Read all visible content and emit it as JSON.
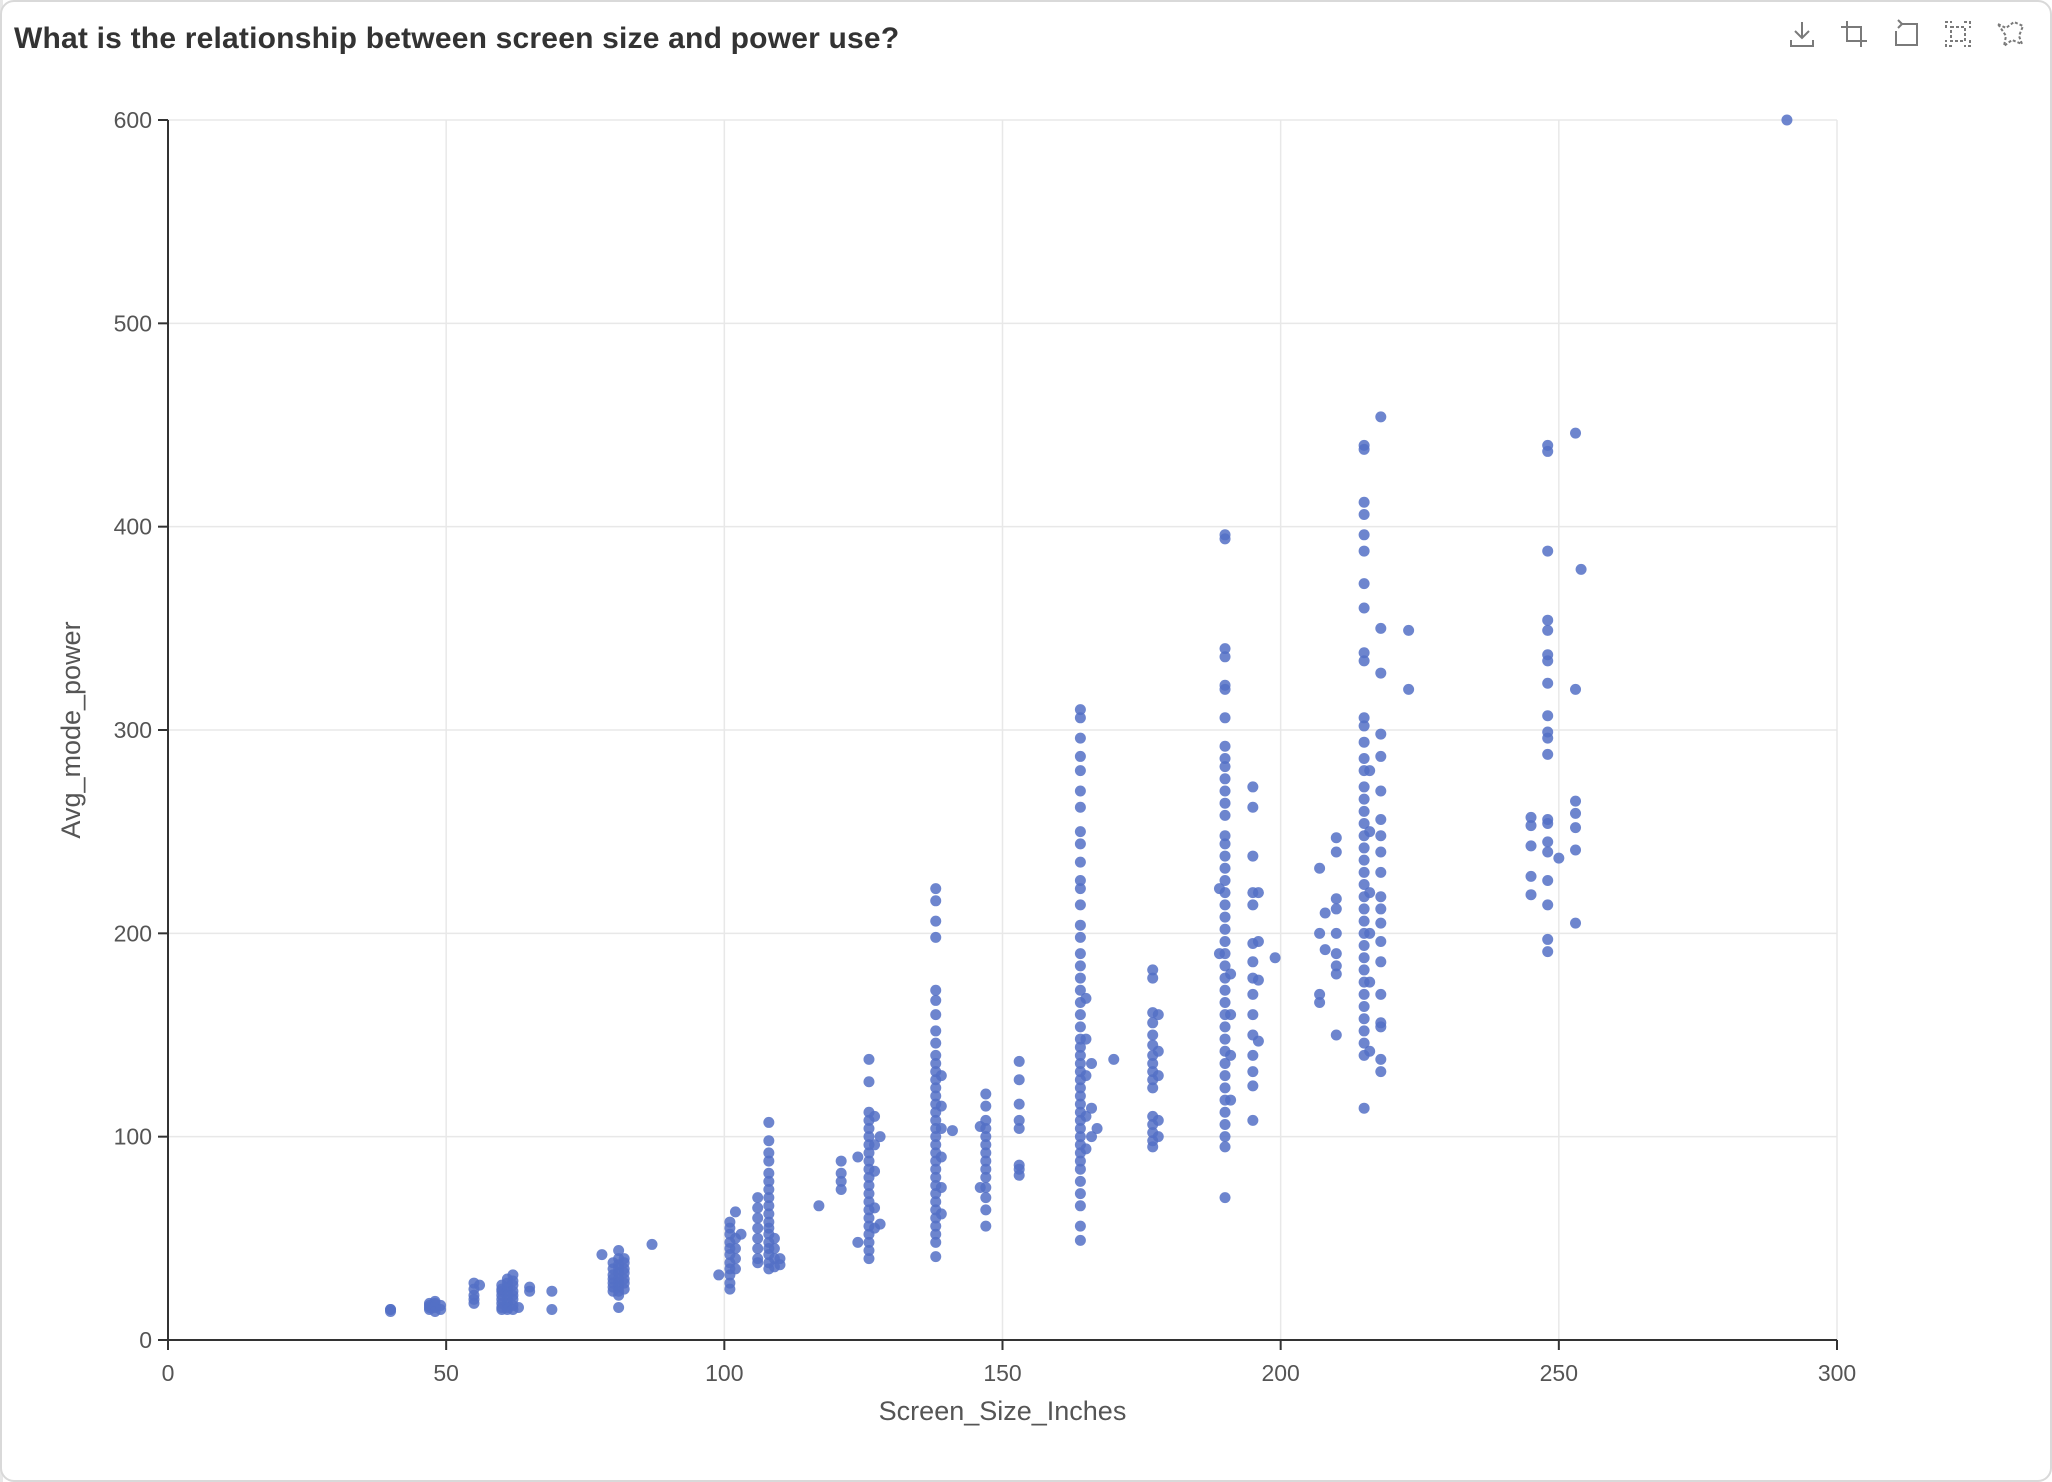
{
  "title": "What is the relationship between screen size and power use?",
  "toolbar": [
    {
      "name": "download-icon",
      "label": "download"
    },
    {
      "name": "zoom-area-icon",
      "label": "zoom area"
    },
    {
      "name": "zoom-reset-icon",
      "label": "zoom reset"
    },
    {
      "name": "fit-to-screen-icon",
      "label": "fit to screen"
    },
    {
      "name": "lasso-select-icon",
      "label": "lasso select"
    }
  ],
  "colors": {
    "point": "#5470c6",
    "axis": "#333333",
    "grid": "#e8e8e8",
    "tick_text": "#555555"
  },
  "chart_data": {
    "type": "scatter",
    "title": "What is the relationship between screen size and power use?",
    "xlabel": "Screen_Size_Inches",
    "ylabel": "Avg_mode_power",
    "xlim": [
      0,
      300
    ],
    "ylim": [
      0,
      600
    ],
    "xticks": [
      0,
      50,
      100,
      150,
      200,
      250,
      300
    ],
    "yticks": [
      0,
      100,
      200,
      300,
      400,
      500,
      600
    ],
    "grid": true,
    "legend": "none",
    "columns": [
      {
        "x": 40,
        "y": [
          15,
          15,
          14
        ]
      },
      {
        "x": 47,
        "y": [
          17,
          15,
          18,
          16
        ]
      },
      {
        "x": 48,
        "y": [
          19,
          18,
          16,
          14,
          17
        ]
      },
      {
        "x": 49,
        "y": [
          17,
          15
        ]
      },
      {
        "x": 55,
        "y": [
          28,
          25,
          22,
          20,
          18
        ]
      },
      {
        "x": 56,
        "y": [
          27
        ]
      },
      {
        "x": 60,
        "y": [
          27,
          24,
          22,
          20,
          18,
          16,
          25,
          15
        ]
      },
      {
        "x": 61,
        "y": [
          30,
          28,
          26,
          24,
          22,
          20,
          18,
          16,
          15
        ]
      },
      {
        "x": 62,
        "y": [
          32,
          29,
          27,
          24,
          22,
          20,
          17,
          15
        ]
      },
      {
        "x": 63,
        "y": [
          16
        ]
      },
      {
        "x": 65,
        "y": [
          26,
          24
        ]
      },
      {
        "x": 69,
        "y": [
          24,
          15
        ]
      },
      {
        "x": 78,
        "y": [
          42
        ]
      },
      {
        "x": 80,
        "y": [
          38,
          35,
          32,
          30,
          28,
          26,
          24
        ]
      },
      {
        "x": 81,
        "y": [
          44,
          40,
          37,
          35,
          33,
          30,
          28,
          26,
          24,
          22,
          16
        ]
      },
      {
        "x": 82,
        "y": [
          40,
          38,
          35,
          33,
          30,
          28,
          25
        ]
      },
      {
        "x": 87,
        "y": [
          47
        ]
      },
      {
        "x": 99,
        "y": [
          32
        ]
      },
      {
        "x": 101,
        "y": [
          58,
          55,
          52,
          48,
          45,
          42,
          38,
          35,
          32,
          28,
          25
        ]
      },
      {
        "x": 102,
        "y": [
          63,
          50,
          45,
          40,
          35
        ]
      },
      {
        "x": 103,
        "y": [
          52
        ]
      },
      {
        "x": 106,
        "y": [
          70,
          65,
          60,
          55,
          50,
          45,
          40,
          38
        ]
      },
      {
        "x": 108,
        "y": [
          107,
          98,
          92,
          88,
          82,
          78,
          74,
          70,
          66,
          62,
          58,
          55,
          52,
          48,
          45,
          42,
          38,
          35
        ]
      },
      {
        "x": 109,
        "y": [
          50,
          45,
          40,
          36
        ]
      },
      {
        "x": 110,
        "y": [
          40,
          37
        ]
      },
      {
        "x": 117,
        "y": [
          66
        ]
      },
      {
        "x": 121,
        "y": [
          88,
          82,
          78,
          74
        ]
      },
      {
        "x": 124,
        "y": [
          90,
          48
        ]
      },
      {
        "x": 126,
        "y": [
          138,
          127,
          112,
          108,
          104,
          100,
          96,
          92,
          88,
          84,
          80,
          76,
          72,
          68,
          64,
          60,
          56,
          52,
          48,
          44,
          40
        ]
      },
      {
        "x": 127,
        "y": [
          110,
          96,
          83,
          65,
          55
        ]
      },
      {
        "x": 128,
        "y": [
          100,
          57
        ]
      },
      {
        "x": 138,
        "y": [
          222,
          216,
          206,
          198,
          172,
          167,
          160,
          152,
          146,
          140,
          136,
          132,
          128,
          124,
          120,
          116,
          112,
          108,
          104,
          100,
          96,
          92,
          88,
          84,
          80,
          76,
          72,
          68,
          64,
          60,
          56,
          52,
          48,
          41
        ]
      },
      {
        "x": 139,
        "y": [
          130,
          115,
          104,
          90,
          75,
          62
        ]
      },
      {
        "x": 141,
        "y": [
          103
        ]
      },
      {
        "x": 146,
        "y": [
          105,
          75
        ]
      },
      {
        "x": 147,
        "y": [
          121,
          115,
          108,
          104,
          100,
          96,
          92,
          88,
          84,
          80,
          75,
          70,
          64,
          56
        ]
      },
      {
        "x": 153,
        "y": [
          137,
          128,
          116,
          108,
          104,
          86,
          84,
          81
        ]
      },
      {
        "x": 164,
        "y": [
          310,
          306,
          296,
          287,
          280,
          270,
          262,
          250,
          244,
          235,
          226,
          222,
          214,
          204,
          198,
          190,
          184,
          178,
          172,
          166,
          160,
          154,
          148,
          144,
          140,
          136,
          132,
          128,
          124,
          120,
          116,
          112,
          108,
          104,
          100,
          96,
          92,
          88,
          84,
          78,
          72,
          66,
          56,
          49
        ]
      },
      {
        "x": 165,
        "y": [
          168,
          148,
          130,
          110,
          94
        ]
      },
      {
        "x": 166,
        "y": [
          136,
          114,
          100
        ]
      },
      {
        "x": 167,
        "y": [
          104
        ]
      },
      {
        "x": 170,
        "y": [
          138
        ]
      },
      {
        "x": 177,
        "y": [
          182,
          178,
          161,
          156,
          150,
          145,
          140,
          136,
          132,
          128,
          124,
          110,
          106,
          102,
          98,
          95
        ]
      },
      {
        "x": 178,
        "y": [
          160,
          142,
          130,
          108,
          100
        ]
      },
      {
        "x": 189,
        "y": [
          222,
          190
        ]
      },
      {
        "x": 190,
        "y": [
          396,
          394,
          340,
          336,
          322,
          320,
          306,
          292,
          286,
          282,
          276,
          270,
          264,
          258,
          248,
          244,
          238,
          232,
          226,
          220,
          214,
          208,
          202,
          196,
          190,
          184,
          178,
          172,
          166,
          160,
          154,
          148,
          142,
          136,
          130,
          124,
          118,
          112,
          106,
          100,
          95,
          70
        ]
      },
      {
        "x": 191,
        "y": [
          180,
          160,
          140,
          118
        ]
      },
      {
        "x": 195,
        "y": [
          272,
          262,
          238,
          220,
          214,
          195,
          186,
          178,
          170,
          160,
          150,
          140,
          132,
          125,
          108
        ]
      },
      {
        "x": 196,
        "y": [
          220,
          196,
          177,
          147
        ]
      },
      {
        "x": 199,
        "y": [
          188
        ]
      },
      {
        "x": 207,
        "y": [
          232,
          200,
          170,
          166
        ]
      },
      {
        "x": 208,
        "y": [
          210,
          192
        ]
      },
      {
        "x": 210,
        "y": [
          247,
          240,
          217,
          212,
          200,
          190,
          184,
          180,
          150
        ]
      },
      {
        "x": 215,
        "y": [
          440,
          438,
          412,
          406,
          396,
          388,
          372,
          360,
          338,
          334,
          306,
          302,
          294,
          286,
          280,
          272,
          266,
          260,
          254,
          248,
          242,
          236,
          230,
          224,
          218,
          212,
          206,
          200,
          194,
          188,
          182,
          176,
          170,
          164,
          158,
          152,
          146,
          140,
          114
        ]
      },
      {
        "x": 216,
        "y": [
          280,
          250,
          220,
          200,
          176,
          142
        ]
      },
      {
        "x": 218,
        "y": [
          454,
          350,
          328,
          298,
          287,
          270,
          256,
          248,
          240,
          230,
          218,
          212,
          205,
          196,
          186,
          170,
          156,
          154,
          138,
          132
        ]
      },
      {
        "x": 223,
        "y": [
          349,
          320
        ]
      },
      {
        "x": 245,
        "y": [
          257,
          253,
          243,
          228,
          219
        ]
      },
      {
        "x": 248,
        "y": [
          440,
          437,
          388,
          354,
          349,
          337,
          334,
          323,
          307,
          299,
          296,
          288,
          256,
          254,
          245,
          240,
          226,
          214,
          197,
          191
        ]
      },
      {
        "x": 250,
        "y": [
          237
        ]
      },
      {
        "x": 253,
        "y": [
          446,
          320,
          265,
          259,
          252,
          241,
          205
        ]
      },
      {
        "x": 254,
        "y": [
          379
        ]
      },
      {
        "x": 291,
        "y": [
          600
        ]
      }
    ]
  }
}
